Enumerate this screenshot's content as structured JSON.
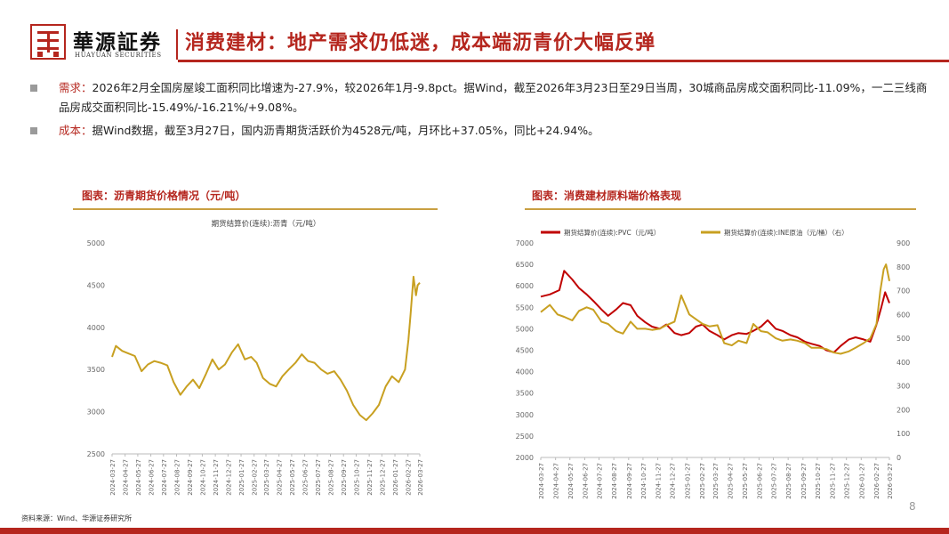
{
  "header": {
    "logo_cn": "華源証券",
    "logo_en": "HUAYUAN SECURITIES",
    "title": "消费建材：地产需求仍低迷，成本端沥青价大幅反弹"
  },
  "bullets": [
    {
      "tag": "需求：",
      "text": "2026年2月全国房屋竣工面积同比增速为-27.9%，较2026年1月-9.8pct。据Wind，截至2026年3月23日至29日当周，30城商品房成交面积同比-11.09%，一二三线商品房成交面积同比-15.49%/-16.21%/+9.08%。"
    },
    {
      "tag": "成本：",
      "text": "据Wind数据，截至3月27日，国内沥青期货活跃价为4528元/吨，月环比+37.05%，同比+24.94%。"
    }
  ],
  "figures": {
    "left_title": "图表：沥青期货价格情况（元/吨）",
    "right_title": "图表：消费建材原料端价格表现"
  },
  "footer": {
    "source": "资料来源：Wind、华源证券研究所",
    "page": "8"
  },
  "colors": {
    "brand_red": "#b5261e",
    "gold": "#c9a042",
    "series_gold": "#c8a021",
    "series_red": "#c00000"
  },
  "chart_data": [
    {
      "type": "line",
      "title": "期货结算价(连续):沥青（元/吨）",
      "ylim": [
        2500,
        5000
      ],
      "yticks": [
        2500,
        3000,
        3500,
        4000,
        4500,
        5000
      ],
      "x_ticks": [
        "2024-03-27",
        "2024-04-27",
        "2024-05-27",
        "2024-06-27",
        "2024-07-27",
        "2024-08-27",
        "2024-09-27",
        "2024-10-27",
        "2024-11-27",
        "2024-12-27",
        "2025-01-27",
        "2025-02-27",
        "2025-03-27",
        "2025-04-27",
        "2025-05-27",
        "2025-06-27",
        "2025-07-27",
        "2025-08-27",
        "2025-09-27",
        "2025-10-27",
        "2025-11-27",
        "2025-12-27",
        "2026-01-27",
        "2026-02-27",
        "2026-03-27"
      ],
      "series": [
        {
          "name": "期货结算价(连续):沥青（元/吨）",
          "points": [
            [
              "2024-03-27",
              3650
            ],
            [
              "2024-04-05",
              3780
            ],
            [
              "2024-04-20",
              3720
            ],
            [
              "2024-05-05",
              3690
            ],
            [
              "2024-05-20",
              3660
            ],
            [
              "2024-06-05",
              3480
            ],
            [
              "2024-06-20",
              3560
            ],
            [
              "2024-07-05",
              3600
            ],
            [
              "2024-07-20",
              3580
            ],
            [
              "2024-08-05",
              3550
            ],
            [
              "2024-08-20",
              3350
            ],
            [
              "2024-09-05",
              3200
            ],
            [
              "2024-09-20",
              3300
            ],
            [
              "2024-10-05",
              3380
            ],
            [
              "2024-10-20",
              3280
            ],
            [
              "2024-11-05",
              3450
            ],
            [
              "2024-11-20",
              3620
            ],
            [
              "2024-12-05",
              3500
            ],
            [
              "2024-12-20",
              3560
            ],
            [
              "2025-01-05",
              3700
            ],
            [
              "2025-01-20",
              3800
            ],
            [
              "2025-02-05",
              3620
            ],
            [
              "2025-02-20",
              3650
            ],
            [
              "2025-03-05",
              3580
            ],
            [
              "2025-03-20",
              3400
            ],
            [
              "2025-04-05",
              3330
            ],
            [
              "2025-04-20",
              3300
            ],
            [
              "2025-05-05",
              3420
            ],
            [
              "2025-05-20",
              3500
            ],
            [
              "2025-06-05",
              3580
            ],
            [
              "2025-06-20",
              3680
            ],
            [
              "2025-07-05",
              3600
            ],
            [
              "2025-07-20",
              3580
            ],
            [
              "2025-08-05",
              3500
            ],
            [
              "2025-08-20",
              3450
            ],
            [
              "2025-09-05",
              3480
            ],
            [
              "2025-09-20",
              3380
            ],
            [
              "2025-10-05",
              3250
            ],
            [
              "2025-10-20",
              3080
            ],
            [
              "2025-11-05",
              2960
            ],
            [
              "2025-11-20",
              2900
            ],
            [
              "2025-12-05",
              2980
            ],
            [
              "2025-12-20",
              3080
            ],
            [
              "2026-01-05",
              3300
            ],
            [
              "2026-01-20",
              3420
            ],
            [
              "2026-02-05",
              3350
            ],
            [
              "2026-02-20",
              3500
            ],
            [
              "2026-02-28",
              3850
            ],
            [
              "2026-03-05",
              4150
            ],
            [
              "2026-03-12",
              4600
            ],
            [
              "2026-03-18",
              4380
            ],
            [
              "2026-03-22",
              4500
            ],
            [
              "2026-03-27",
              4528
            ]
          ]
        }
      ]
    },
    {
      "type": "line",
      "title": "",
      "ylim_left": [
        2000,
        7000
      ],
      "yticks_left": [
        2000,
        2500,
        3000,
        3500,
        4000,
        4500,
        5000,
        5500,
        6000,
        6500,
        7000
      ],
      "ylim_right": [
        0,
        900
      ],
      "yticks_right": [
        0,
        100,
        200,
        300,
        400,
        500,
        600,
        700,
        800,
        900
      ],
      "legend": "top",
      "x_ticks": [
        "2024-03-27",
        "2024-04-27",
        "2024-05-27",
        "2024-06-27",
        "2024-07-27",
        "2024-08-27",
        "2024-09-27",
        "2024-10-27",
        "2024-11-27",
        "2024-12-27",
        "2025-01-27",
        "2025-02-27",
        "2025-03-27",
        "2025-04-27",
        "2025-05-27",
        "2025-06-27",
        "2025-07-27",
        "2025-08-27",
        "2025-09-27",
        "2025-10-27",
        "2025-11-27",
        "2025-12-27",
        "2026-01-27",
        "2026-02-27",
        "2026-03-27"
      ],
      "series": [
        {
          "name": "期货结算价(连续):PVC（元/吨）",
          "axis": "left",
          "points": [
            [
              "2024-03-27",
              5750
            ],
            [
              "2024-04-15",
              5800
            ],
            [
              "2024-05-05",
              5900
            ],
            [
              "2024-05-15",
              6350
            ],
            [
              "2024-06-01",
              6150
            ],
            [
              "2024-06-15",
              5950
            ],
            [
              "2024-07-01",
              5800
            ],
            [
              "2024-07-15",
              5650
            ],
            [
              "2024-08-01",
              5450
            ],
            [
              "2024-08-15",
              5300
            ],
            [
              "2024-09-01",
              5450
            ],
            [
              "2024-09-15",
              5600
            ],
            [
              "2024-10-01",
              5550
            ],
            [
              "2024-10-15",
              5300
            ],
            [
              "2024-11-01",
              5150
            ],
            [
              "2024-11-15",
              5050
            ],
            [
              "2024-12-01",
              5000
            ],
            [
              "2024-12-15",
              5100
            ],
            [
              "2025-01-01",
              4900
            ],
            [
              "2025-01-15",
              4850
            ],
            [
              "2025-02-01",
              4900
            ],
            [
              "2025-02-15",
              5050
            ],
            [
              "2025-03-01",
              5100
            ],
            [
              "2025-03-15",
              4950
            ],
            [
              "2025-04-01",
              4850
            ],
            [
              "2025-04-15",
              4750
            ],
            [
              "2025-05-01",
              4850
            ],
            [
              "2025-05-15",
              4900
            ],
            [
              "2025-06-01",
              4880
            ],
            [
              "2025-06-15",
              4950
            ],
            [
              "2025-07-01",
              5050
            ],
            [
              "2025-07-15",
              5200
            ],
            [
              "2025-08-01",
              5000
            ],
            [
              "2025-08-15",
              4950
            ],
            [
              "2025-09-01",
              4850
            ],
            [
              "2025-09-15",
              4800
            ],
            [
              "2025-10-01",
              4700
            ],
            [
              "2025-10-15",
              4650
            ],
            [
              "2025-11-01",
              4600
            ],
            [
              "2025-11-15",
              4500
            ],
            [
              "2025-12-01",
              4450
            ],
            [
              "2025-12-15",
              4600
            ],
            [
              "2026-01-01",
              4750
            ],
            [
              "2026-01-15",
              4800
            ],
            [
              "2026-02-01",
              4750
            ],
            [
              "2026-02-15",
              4700
            ],
            [
              "2026-02-28",
              5100
            ],
            [
              "2026-03-10",
              5500
            ],
            [
              "2026-03-18",
              5850
            ],
            [
              "2026-03-27",
              5600
            ]
          ]
        },
        {
          "name": "期货结算价(连续):INE原油（元/桶）（右）",
          "axis": "right",
          "points": [
            [
              "2024-03-27",
              610
            ],
            [
              "2024-04-15",
              640
            ],
            [
              "2024-05-01",
              600
            ],
            [
              "2024-05-15",
              590
            ],
            [
              "2024-06-01",
              575
            ],
            [
              "2024-06-15",
              615
            ],
            [
              "2024-07-01",
              630
            ],
            [
              "2024-07-15",
              620
            ],
            [
              "2024-08-01",
              570
            ],
            [
              "2024-08-15",
              560
            ],
            [
              "2024-09-01",
              530
            ],
            [
              "2024-09-15",
              520
            ],
            [
              "2024-10-01",
              570
            ],
            [
              "2024-10-15",
              540
            ],
            [
              "2024-11-01",
              540
            ],
            [
              "2024-11-15",
              535
            ],
            [
              "2024-12-01",
              540
            ],
            [
              "2024-12-15",
              555
            ],
            [
              "2025-01-01",
              570
            ],
            [
              "2025-01-15",
              680
            ],
            [
              "2025-02-01",
              600
            ],
            [
              "2025-02-15",
              580
            ],
            [
              "2025-03-01",
              560
            ],
            [
              "2025-03-15",
              550
            ],
            [
              "2025-04-01",
              555
            ],
            [
              "2025-04-15",
              480
            ],
            [
              "2025-05-01",
              470
            ],
            [
              "2025-05-15",
              490
            ],
            [
              "2025-06-01",
              480
            ],
            [
              "2025-06-15",
              560
            ],
            [
              "2025-07-01",
              530
            ],
            [
              "2025-07-15",
              525
            ],
            [
              "2025-08-01",
              500
            ],
            [
              "2025-08-15",
              490
            ],
            [
              "2025-09-01",
              495
            ],
            [
              "2025-09-15",
              490
            ],
            [
              "2025-10-01",
              480
            ],
            [
              "2025-10-15",
              460
            ],
            [
              "2025-11-01",
              460
            ],
            [
              "2025-11-15",
              455
            ],
            [
              "2025-12-01",
              440
            ],
            [
              "2025-12-15",
              435
            ],
            [
              "2026-01-01",
              445
            ],
            [
              "2026-01-15",
              460
            ],
            [
              "2026-02-01",
              480
            ],
            [
              "2026-02-15",
              500
            ],
            [
              "2026-02-28",
              560
            ],
            [
              "2026-03-08",
              700
            ],
            [
              "2026-03-15",
              790
            ],
            [
              "2026-03-20",
              810
            ],
            [
              "2026-03-27",
              740
            ]
          ]
        }
      ]
    }
  ]
}
